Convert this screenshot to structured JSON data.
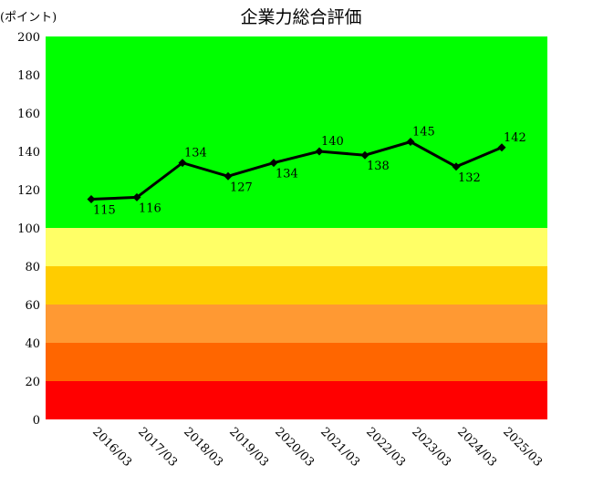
{
  "chart_data": {
    "type": "line",
    "title": "企業力総合評価",
    "ylabel": "(ポイント)",
    "xlabel": "",
    "categories": [
      "2016/03",
      "2017/03",
      "2018/03",
      "2019/03",
      "2020/03",
      "2021/03",
      "2022/03",
      "2023/03",
      "2024/03",
      "2025/03"
    ],
    "values": [
      115,
      116,
      134,
      127,
      134,
      140,
      138,
      145,
      132,
      142
    ],
    "label_positions": [
      "below",
      "below",
      "above",
      "below",
      "below",
      "above",
      "below",
      "above",
      "below",
      "above"
    ],
    "ylim": [
      0,
      200
    ],
    "yticks": [
      0,
      20,
      40,
      60,
      80,
      100,
      120,
      140,
      160,
      180,
      200
    ],
    "grid": false,
    "line_color": "#000000",
    "bands": [
      {
        "from": 0,
        "to": 20,
        "color": "#ff0000"
      },
      {
        "from": 20,
        "to": 40,
        "color": "#ff6600"
      },
      {
        "from": 40,
        "to": 60,
        "color": "#ff9933"
      },
      {
        "from": 60,
        "to": 80,
        "color": "#ffcc00"
      },
      {
        "from": 80,
        "to": 100,
        "color": "#ffff66"
      },
      {
        "from": 100,
        "to": 200,
        "color": "#00ff00"
      }
    ]
  }
}
